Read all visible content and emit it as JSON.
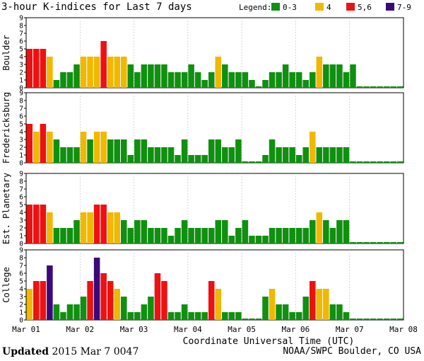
{
  "chart_data": {
    "type": "bar",
    "title": "3-hour K-indices for Last 7 days",
    "xlabel": "Coordinate Universal Time (UTC)",
    "x_ticks": [
      "Mar 01",
      "Mar 02",
      "Mar 03",
      "Mar 04",
      "Mar 05",
      "Mar 06",
      "Mar 07",
      "Mar 08"
    ],
    "ylim": [
      0,
      9
    ],
    "y_ticks": [
      "0",
      "1",
      "2",
      "3",
      "4",
      "5",
      "6",
      "7",
      "8",
      "9"
    ],
    "legend": {
      "label": "Legend:",
      "items": [
        {
          "label": "0-3",
          "color": "#109010"
        },
        {
          "label": "4",
          "color": "#f0b800"
        },
        {
          "label": "5,6",
          "color": "#ee1111"
        },
        {
          "label": "7-9",
          "color": "#3a0a7a"
        }
      ]
    },
    "panels": [
      {
        "name": "Boulder",
        "values": [
          5,
          5,
          5,
          4,
          1,
          2,
          2,
          3,
          4,
          4,
          4,
          6,
          4,
          4,
          4,
          3,
          2,
          3,
          3,
          3,
          3,
          2,
          2,
          2,
          3,
          2,
          1,
          2,
          4,
          3,
          2,
          2,
          2,
          1,
          0,
          1,
          2,
          2,
          3,
          2,
          2,
          1,
          2,
          4,
          3,
          3,
          3,
          2,
          3,
          0,
          0,
          0,
          0,
          0,
          0,
          0
        ]
      },
      {
        "name": "Fredericksburg",
        "values": [
          5,
          4,
          5,
          4,
          3,
          2,
          2,
          2,
          4,
          3,
          4,
          4,
          3,
          3,
          3,
          1,
          3,
          3,
          2,
          2,
          2,
          2,
          1,
          3,
          1,
          1,
          1,
          3,
          3,
          2,
          2,
          3,
          0,
          0,
          0,
          1,
          3,
          2,
          2,
          2,
          1,
          2,
          4,
          2,
          2,
          2,
          2,
          2,
          0,
          0,
          0,
          0,
          0,
          0,
          0,
          0
        ]
      },
      {
        "name": "Est. Planetary",
        "values": [
          5,
          5,
          5,
          4,
          2,
          2,
          2,
          3,
          4,
          4,
          5,
          5,
          4,
          4,
          3,
          2,
          3,
          3,
          2,
          2,
          2,
          1,
          2,
          3,
          2,
          2,
          2,
          2,
          3,
          3,
          1,
          2,
          3,
          1,
          1,
          1,
          2,
          2,
          2,
          2,
          2,
          2,
          3,
          4,
          3,
          2,
          3,
          3,
          0,
          0,
          0,
          0,
          0,
          0,
          0,
          0
        ]
      },
      {
        "name": "College",
        "values": [
          4,
          5,
          5,
          7,
          2,
          1,
          2,
          2,
          3,
          5,
          8,
          6,
          5,
          4,
          3,
          1,
          1,
          2,
          3,
          6,
          5,
          1,
          1,
          2,
          1,
          1,
          1,
          5,
          4,
          1,
          1,
          1,
          0,
          0,
          0,
          3,
          4,
          2,
          2,
          1,
          1,
          3,
          5,
          4,
          4,
          2,
          2,
          1,
          0,
          0,
          0,
          0,
          0,
          0,
          0,
          0
        ]
      }
    ]
  },
  "footer": {
    "updated_label": "Updated",
    "updated_time": "2015 Mar  7 0047",
    "org": "NOAA/SWPC Boulder, CO USA"
  }
}
